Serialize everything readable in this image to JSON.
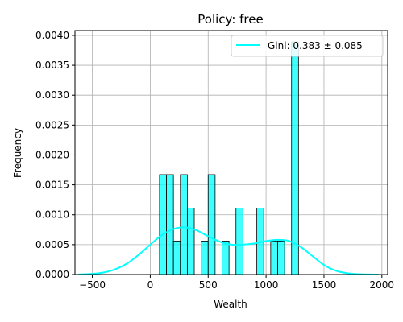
{
  "chart_data": {
    "type": "bar",
    "title": "Policy: free",
    "xlabel": "Wealth",
    "ylabel": "Frequency",
    "xlim": [
      -650,
      2050
    ],
    "ylim": [
      0,
      0.00408
    ],
    "xticks": [
      -500,
      0,
      500,
      1000,
      1500,
      2000
    ],
    "xtick_labels": [
      "−500",
      "0",
      "500",
      "1000",
      "1500",
      "2000"
    ],
    "yticks": [
      0,
      0.0005,
      0.001,
      0.0015,
      0.002,
      0.0025,
      0.003,
      0.0035,
      0.004
    ],
    "ytick_labels": [
      "0.0000",
      "0.0005",
      "0.0010",
      "0.0015",
      "0.0020",
      "0.0025",
      "0.0030",
      "0.0035",
      "0.0040"
    ],
    "grid": true,
    "legend_position": "top-right",
    "histogram": {
      "color": "#00ffff",
      "opacity": 0.75,
      "edge_color": "#000000",
      "bin_width": 60,
      "bins": [
        {
          "x": 80,
          "value": 0.00167
        },
        {
          "x": 140,
          "value": 0.00167
        },
        {
          "x": 200,
          "value": 0.00056
        },
        {
          "x": 260,
          "value": 0.00167
        },
        {
          "x": 320,
          "value": 0.00111
        },
        {
          "x": 440,
          "value": 0.00056
        },
        {
          "x": 500,
          "value": 0.00167
        },
        {
          "x": 620,
          "value": 0.00056
        },
        {
          "x": 740,
          "value": 0.00111
        },
        {
          "x": 920,
          "value": 0.00111
        },
        {
          "x": 1040,
          "value": 0.00056
        },
        {
          "x": 1100,
          "value": 0.00056
        },
        {
          "x": 1220,
          "value": 0.00389
        }
      ]
    },
    "series": [
      {
        "name": "Gini: 0.383 ± 0.085",
        "type": "line",
        "color": "#00ffff",
        "x": [
          -620,
          -500,
          -400,
          -300,
          -200,
          -100,
          0,
          100,
          200,
          300,
          400,
          500,
          600,
          700,
          800,
          900,
          1000,
          1100,
          1200,
          1300,
          1400,
          1500,
          1600,
          1700,
          1800,
          1900,
          1970
        ],
        "y": [
          2e-06,
          1.2e-05,
          3.5e-05,
          9e-05,
          0.000185,
          0.00033,
          0.0005,
          0.00066,
          0.00076,
          0.00079,
          0.00074,
          0.00064,
          0.00055,
          0.0005,
          0.0005,
          0.00052,
          0.00056,
          0.00058,
          0.00056,
          0.00046,
          0.00031,
          0.00016,
          6.5e-05,
          2.2e-05,
          6e-06,
          1e-06,
          3e-07
        ]
      }
    ]
  }
}
